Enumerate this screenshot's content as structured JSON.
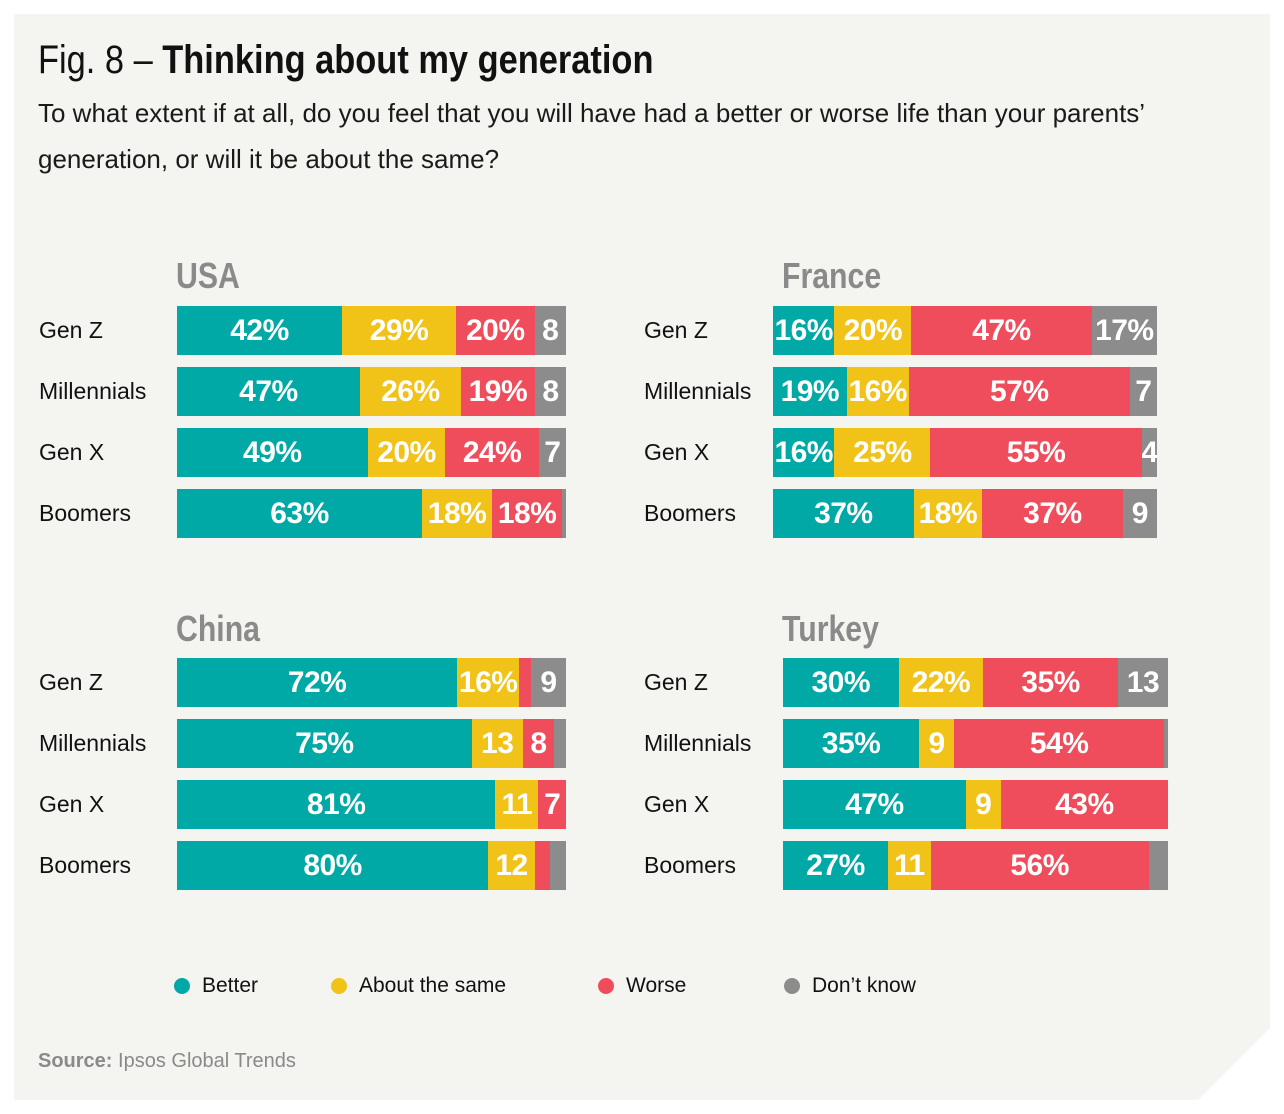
{
  "title": {
    "prefix": "Fig. 8 – ",
    "bold": "Thinking about my generation"
  },
  "subtitle": "To what extent if at all, do you feel that you will have had a better or worse life than your parents’ generation, or will it be about the same?",
  "colors": {
    "better": "#00a9a5",
    "same": "#f1c218",
    "worse": "#f04d5c",
    "dont_know": "#8c8c8c"
  },
  "legend": [
    {
      "key": "better",
      "label": "Better"
    },
    {
      "key": "same",
      "label": "About the same"
    },
    {
      "key": "worse",
      "label": "Worse"
    },
    {
      "key": "dont_know",
      "label": "Don’t know"
    }
  ],
  "source": {
    "label": "Source:",
    "text": " Ipsos Global Trends"
  },
  "chart_data": [
    {
      "type": "bar",
      "stacked": true,
      "orientation": "horizontal",
      "title": "USA",
      "categories": [
        "Gen Z",
        "Millennials",
        "Gen X",
        "Boomers"
      ],
      "series": [
        {
          "name": "Better",
          "values": [
            42,
            47,
            49,
            63
          ]
        },
        {
          "name": "About the same",
          "values": [
            29,
            26,
            20,
            18
          ]
        },
        {
          "name": "Worse",
          "values": [
            20,
            19,
            24,
            18
          ]
        },
        {
          "name": "Don’t know",
          "values": [
            8,
            8,
            7,
            1
          ]
        }
      ],
      "labels": [
        [
          "42%",
          "29%",
          "20%",
          "8"
        ],
        [
          "47%",
          "26%",
          "19%",
          "8"
        ],
        [
          "49%",
          "20%",
          "24%",
          "7"
        ],
        [
          "63%",
          "18%",
          "18%",
          ""
        ]
      ]
    },
    {
      "type": "bar",
      "stacked": true,
      "orientation": "horizontal",
      "title": "France",
      "categories": [
        "Gen Z",
        "Millennials",
        "Gen X",
        "Boomers"
      ],
      "series": [
        {
          "name": "Better",
          "values": [
            16,
            19,
            16,
            37
          ]
        },
        {
          "name": "About the same",
          "values": [
            20,
            16,
            25,
            18
          ]
        },
        {
          "name": "Worse",
          "values": [
            47,
            57,
            55,
            37
          ]
        },
        {
          "name": "Don’t know",
          "values": [
            17,
            7,
            4,
            9
          ]
        }
      ],
      "labels": [
        [
          "16%",
          "20%",
          "47%",
          "17%"
        ],
        [
          "19%",
          "16%",
          "57%",
          "7"
        ],
        [
          "16%",
          "25%",
          "55%",
          "4"
        ],
        [
          "37%",
          "18%",
          "37%",
          "9"
        ]
      ]
    },
    {
      "type": "bar",
      "stacked": true,
      "orientation": "horizontal",
      "title": "China",
      "categories": [
        "Gen Z",
        "Millennials",
        "Gen X",
        "Boomers"
      ],
      "series": [
        {
          "name": "Better",
          "values": [
            72,
            75,
            81,
            80
          ]
        },
        {
          "name": "About the same",
          "values": [
            16,
            13,
            11,
            12
          ]
        },
        {
          "name": "Worse",
          "values": [
            3,
            8,
            7,
            4
          ]
        },
        {
          "name": "Don’t know",
          "values": [
            9,
            3,
            0,
            4
          ]
        }
      ],
      "labels": [
        [
          "72%",
          "16%",
          "",
          "9"
        ],
        [
          "75%",
          "13",
          "8",
          ""
        ],
        [
          "81%",
          "11",
          "7",
          ""
        ],
        [
          "80%",
          "12",
          "",
          ""
        ]
      ]
    },
    {
      "type": "bar",
      "stacked": true,
      "orientation": "horizontal",
      "title": "Turkey",
      "categories": [
        "Gen Z",
        "Millennials",
        "Gen X",
        "Boomers"
      ],
      "series": [
        {
          "name": "Better",
          "values": [
            30,
            35,
            47,
            27
          ]
        },
        {
          "name": "About the same",
          "values": [
            22,
            9,
            9,
            11
          ]
        },
        {
          "name": "Worse",
          "values": [
            35,
            54,
            43,
            56
          ]
        },
        {
          "name": "Don’t know",
          "values": [
            13,
            1,
            0,
            5
          ]
        }
      ],
      "labels": [
        [
          "30%",
          "22%",
          "35%",
          "13"
        ],
        [
          "35%",
          "9",
          "54%",
          ""
        ],
        [
          "47%",
          "9",
          "43%",
          ""
        ],
        [
          "27%",
          "11",
          "56%",
          ""
        ]
      ]
    }
  ]
}
